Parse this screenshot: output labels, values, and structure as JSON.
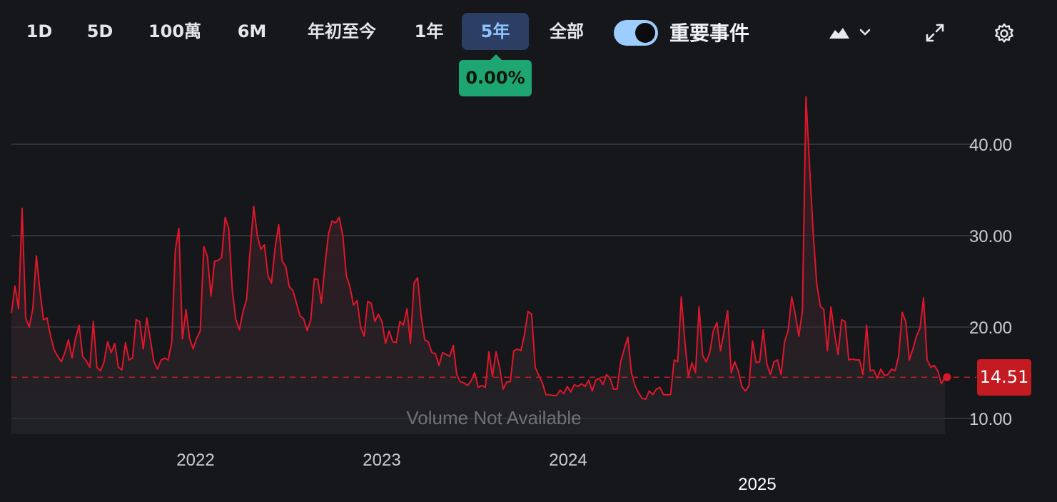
{
  "toolbar": {
    "ranges": [
      "1D",
      "5D",
      "100萬",
      "6M",
      "年初至今",
      "1年",
      "5年",
      "全部"
    ],
    "active_range": "5年",
    "toggle_label": "重要事件",
    "toggle_on": true,
    "icons": [
      "area-chart-type-icon",
      "chevron-down-icon",
      "expand-icon",
      "gear-icon"
    ]
  },
  "tooltip": {
    "change": "0.00%"
  },
  "chart_data": {
    "type": "area",
    "title": "",
    "xlabel": "",
    "ylabel": "",
    "y_ticks": [
      "40.00",
      "30.00",
      "20.00",
      "10.00"
    ],
    "y_tick_values": [
      40,
      30,
      20,
      10
    ],
    "x_ticks": [
      "2022",
      "2023",
      "2024",
      "2025"
    ],
    "current_value": 14.51,
    "current_label": "14.51",
    "volume_note": "Volume Not Available",
    "grid": true,
    "line_color": "#e0162b",
    "series": [
      {
        "values": [
          21.5,
          24.5,
          22,
          33,
          21,
          20,
          22,
          27.8,
          24,
          20.8,
          21,
          19,
          17.5,
          16.8,
          16.2,
          17.2,
          18.6,
          16.6,
          18.8,
          20.2,
          16.8,
          16.3,
          15.6,
          20.6,
          15.6,
          15.2,
          16.2,
          18.4,
          17.2,
          18.2,
          15.6,
          15.3,
          18.3,
          16.4,
          16.6,
          20.8,
          20.6,
          17.6,
          21,
          18.6,
          16.2,
          15.4,
          16.4,
          16.6,
          16.4,
          18.4,
          28.4,
          30.8,
          18.7,
          21.9,
          18.8,
          17.6,
          18.8,
          19.6,
          28.8,
          27.7,
          23.4,
          27.2,
          27.3,
          27.6,
          32,
          30.8,
          24,
          20.8,
          19.7,
          21.7,
          23,
          28.4,
          33.2,
          30,
          28.5,
          29,
          25.6,
          24.8,
          28.6,
          31.2,
          27.2,
          26.6,
          24.4,
          24,
          22.6,
          21.2,
          20.9,
          19.6,
          20.8,
          25.3,
          25.2,
          22.6,
          26.8,
          30.2,
          31.6,
          31.4,
          32,
          30,
          25.6,
          24.4,
          22.4,
          22.9,
          20,
          19,
          22.8,
          22.6,
          20.6,
          21.4,
          20.6,
          18.2,
          19.6,
          18.4,
          18.3,
          20.6,
          20.2,
          22,
          18.2,
          24.8,
          25.4,
          21.2,
          18.6,
          18.4,
          17.2,
          17.1,
          15.8,
          17.2,
          17,
          16.8,
          18,
          14.8,
          14,
          13.9,
          13.6,
          14.1,
          15,
          13.4,
          13.6,
          13.4,
          17.3,
          14.6,
          17.3,
          15.6,
          13.2,
          14,
          14,
          17.4,
          17.6,
          17.4,
          19.2,
          21.7,
          21.4,
          15.6,
          14.7,
          13.9,
          12.6,
          12.6,
          12.5,
          12.5,
          13.1,
          12.7,
          13.5,
          12.9,
          13.7,
          13.5,
          13.8,
          13.5,
          14.2,
          13,
          14.2,
          14.4,
          13.7,
          14.8,
          14.4,
          13.2,
          13.2,
          16.2,
          17.6,
          18.9,
          15,
          13.6,
          12.8,
          12.2,
          12.1,
          13,
          12.6,
          13.2,
          13.4,
          12.6,
          12.6,
          12.6,
          16.4,
          16.2,
          23.3,
          18.4,
          14.6,
          16.1,
          15,
          22.2,
          16.9,
          16.2,
          17.2,
          19.6,
          20.5,
          17.4,
          19.5,
          21.8,
          15,
          16.2,
          15.2,
          13.5,
          13,
          13.6,
          18.5,
          16.1,
          16.2,
          19.7,
          16,
          14.8,
          16.2,
          16.4,
          14.8,
          18.4,
          19.6,
          23.3,
          21.4,
          19,
          21.8,
          45.2,
          37.6,
          30.4,
          24.8,
          22.3,
          21.9,
          17.4,
          22.2,
          19.3,
          17,
          20.8,
          20.6,
          16.4,
          16.5,
          16.4,
          16.4,
          14.8,
          20.2,
          15.2,
          15.3,
          14.4,
          15.4,
          14.7,
          14.8,
          15.4,
          15.2,
          16.8,
          21.6,
          20.6,
          16.4,
          17.6,
          19,
          19.9,
          23.2,
          16.4,
          15.6,
          15.8,
          15.2,
          13.8,
          14.51
        ]
      }
    ]
  }
}
